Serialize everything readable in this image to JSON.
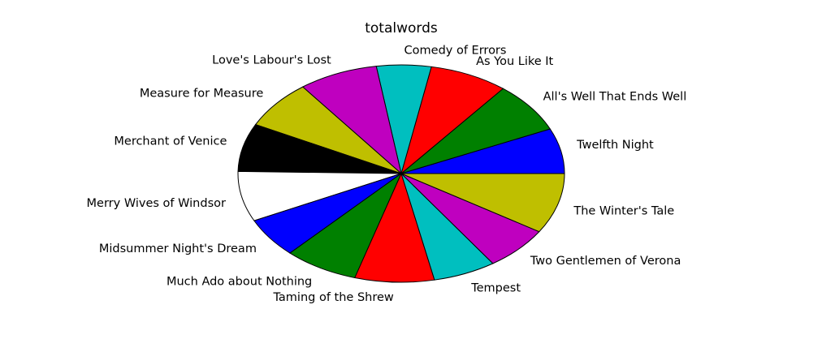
{
  "chart_data": {
    "type": "pie",
    "title": "totalwords",
    "start_angle_deg": 0,
    "direction": "counterclockwise",
    "legend": "none",
    "categories": [
      "Twelfth Night",
      "All's Well That Ends Well",
      "As You Like It",
      "Comedy of Errors",
      "Love's Labour's Lost",
      "Measure for Measure",
      "Merchant of Venice",
      "Merry Wives of Windsor",
      "Midsummer Night's Dream",
      "Much Ado about Nothing",
      "Taming of the Shrew",
      "Tempest",
      "Two Gentlemen of Verona",
      "The Winter's Tale"
    ],
    "values": [
      6.6,
      7.4,
      7.6,
      5.3,
      7.7,
      7.1,
      7.0,
      7.3,
      5.8,
      7.2,
      7.7,
      6.1,
      6.4,
      8.8
    ],
    "colors": [
      "#0000ff",
      "#008000",
      "#ff0000",
      "#00bfbf",
      "#bf00bf",
      "#bfbf00",
      "#000000",
      "#ffffff",
      "#0000ff",
      "#008000",
      "#ff0000",
      "#00bfbf",
      "#bf00bf",
      "#bfbf00"
    ]
  }
}
